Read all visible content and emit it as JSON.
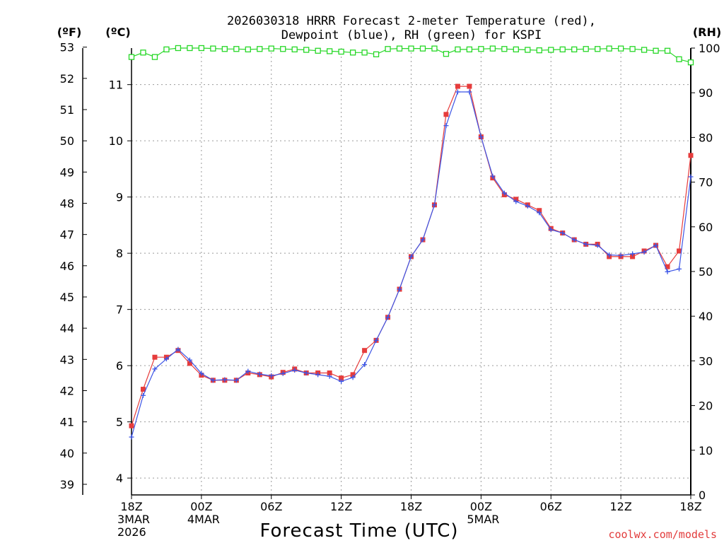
{
  "chart_data": {
    "type": "line",
    "title_line1": "2026030318 HRRR Forecast 2-meter Temperature (red),",
    "title_line2": "Dewpoint (blue), RH (green) for KSPI",
    "xlabel": "Forecast Time (UTC)",
    "credit": "coolwx.com/models",
    "units": {
      "fahrenheit": "(ºF)",
      "celsius": "(ºC)",
      "rh": "(RH)"
    },
    "x_hours": [
      0,
      1,
      2,
      3,
      4,
      5,
      6,
      7,
      8,
      9,
      10,
      11,
      12,
      13,
      14,
      15,
      16,
      17,
      18,
      19,
      20,
      21,
      22,
      23,
      24,
      25,
      26,
      27,
      28,
      29,
      30,
      31,
      32,
      33,
      34,
      35,
      36,
      37,
      38,
      39,
      40,
      41,
      42,
      43,
      44,
      45,
      46,
      47,
      48
    ],
    "xlim": [
      0,
      48
    ],
    "x_ticks": [
      {
        "hour": 0,
        "lines": [
          "18Z",
          "3MAR",
          "2026"
        ]
      },
      {
        "hour": 6,
        "lines": [
          "00Z",
          "4MAR"
        ]
      },
      {
        "hour": 12,
        "lines": [
          "06Z"
        ]
      },
      {
        "hour": 18,
        "lines": [
          "12Z"
        ]
      },
      {
        "hour": 24,
        "lines": [
          "18Z"
        ]
      },
      {
        "hour": 30,
        "lines": [
          "00Z",
          "5MAR"
        ]
      },
      {
        "hour": 36,
        "lines": [
          "06Z"
        ]
      },
      {
        "hour": 42,
        "lines": [
          "12Z"
        ]
      },
      {
        "hour": 48,
        "lines": [
          "18Z"
        ]
      }
    ],
    "y_celsius": {
      "lim": [
        3.7,
        11.65
      ],
      "ticks": [
        "4",
        "5",
        "6",
        "7",
        "8",
        "9",
        "10",
        "11"
      ]
    },
    "y_fahrenheit": {
      "ticks": [
        "39",
        "40",
        "41",
        "42",
        "43",
        "44",
        "45",
        "46",
        "47",
        "48",
        "49",
        "50",
        "51",
        "52",
        "53"
      ]
    },
    "y_rh": {
      "lim": [
        0,
        100
      ],
      "ticks": [
        "0",
        "10",
        "20",
        "30",
        "40",
        "50",
        "60",
        "70",
        "80",
        "90",
        "100"
      ]
    },
    "series": [
      {
        "name": "Temperature",
        "color": "#e63c3c",
        "marker": "square",
        "values": [
          4.93,
          5.58,
          6.15,
          6.15,
          6.27,
          6.04,
          5.83,
          5.74,
          5.74,
          5.74,
          5.87,
          5.84,
          5.8,
          5.88,
          5.94,
          5.87,
          5.87,
          5.87,
          5.78,
          5.84,
          6.27,
          6.45,
          6.86,
          7.36,
          7.94,
          8.24,
          8.86,
          10.47,
          10.97,
          10.97,
          10.07,
          9.34,
          9.04,
          8.96,
          8.86,
          8.76,
          8.44,
          8.36,
          8.24,
          8.16,
          8.16,
          7.94,
          7.94,
          7.94,
          8.04,
          8.14,
          7.76,
          8.04,
          9.74
        ]
      },
      {
        "name": "Dewpoint",
        "color": "#3c55e6",
        "marker": "plus",
        "values": [
          4.73,
          5.47,
          5.94,
          6.12,
          6.29,
          6.1,
          5.86,
          5.74,
          5.75,
          5.74,
          5.9,
          5.85,
          5.82,
          5.86,
          5.92,
          5.87,
          5.84,
          5.81,
          5.72,
          5.79,
          6.02,
          6.45,
          6.86,
          7.36,
          7.94,
          8.24,
          8.86,
          10.27,
          10.87,
          10.87,
          10.07,
          9.37,
          9.07,
          8.92,
          8.84,
          8.72,
          8.42,
          8.36,
          8.24,
          8.16,
          8.14,
          7.97,
          7.96,
          7.99,
          8.02,
          8.14,
          7.67,
          7.72,
          9.36
        ]
      },
      {
        "name": "RH",
        "color": "#27d827",
        "marker": "square-open",
        "values": [
          98,
          99,
          98,
          99.7,
          100,
          100,
          100,
          99.9,
          99.8,
          99.8,
          99.7,
          99.8,
          99.9,
          99.8,
          99.7,
          99.6,
          99.4,
          99.3,
          99.2,
          99,
          99,
          98.6,
          99.8,
          99.9,
          99.9,
          99.9,
          99.9,
          98.7,
          99.7,
          99.7,
          99.8,
          99.9,
          99.8,
          99.7,
          99.6,
          99.5,
          99.6,
          99.7,
          99.7,
          99.8,
          99.8,
          99.9,
          99.9,
          99.8,
          99.6,
          99.4,
          99.4,
          97.5,
          96.8
        ]
      }
    ]
  }
}
